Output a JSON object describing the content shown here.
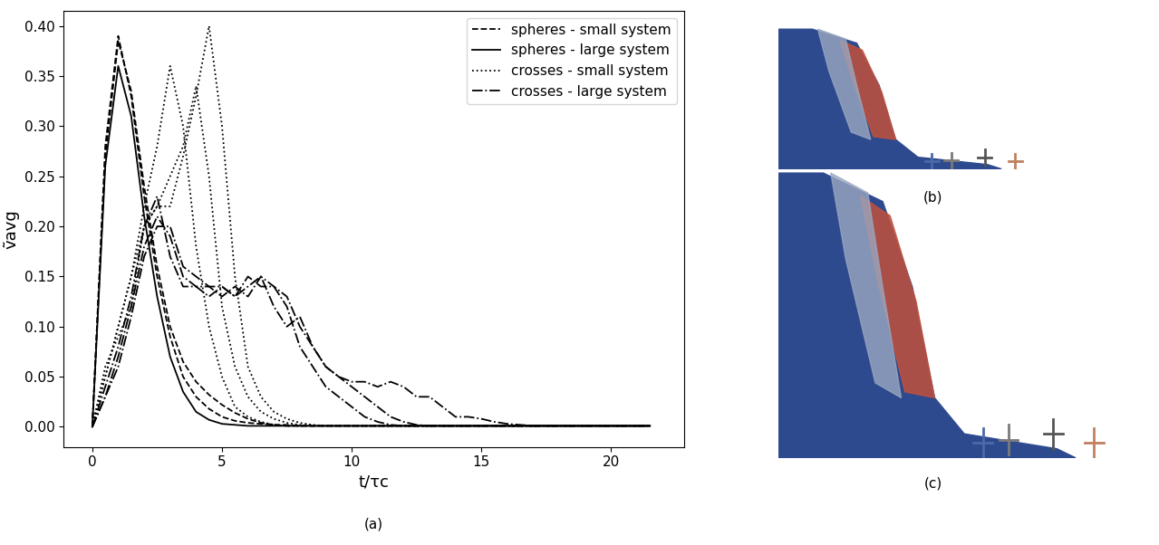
{
  "chart_data": {
    "type": "line",
    "caption": "(a)",
    "x_label": "t/τc",
    "y_label": "ṽavg",
    "xlim": [
      -1.1,
      22.8
    ],
    "ylim": [
      -0.02,
      0.415
    ],
    "xticks": [
      0,
      5,
      10,
      15,
      20
    ],
    "yticks": [
      {
        "value": 0.0,
        "label": "0.00"
      },
      {
        "value": 0.05,
        "label": "0.05"
      },
      {
        "value": 0.1,
        "label": "0.10"
      },
      {
        "value": 0.15,
        "label": "0.15"
      },
      {
        "value": 0.2,
        "label": "0.20"
      },
      {
        "value": 0.25,
        "label": "0.25"
      },
      {
        "value": 0.3,
        "label": "0.30"
      },
      {
        "value": 0.35,
        "label": "0.35"
      },
      {
        "value": 0.4,
        "label": "0.40"
      }
    ],
    "legend": "upper right",
    "grid": false,
    "x": [
      0,
      0.5,
      1,
      1.5,
      2,
      2.5,
      3,
      3.5,
      4,
      4.5,
      5,
      5.5,
      6,
      6.5,
      7,
      7.5,
      8,
      8.5,
      9,
      9.5,
      10,
      10.5,
      11,
      11.5,
      12,
      12.5,
      13,
      13.5,
      14,
      14.5,
      15,
      15.5,
      16,
      16.5,
      17,
      17.5,
      18,
      18.5,
      19,
      19.5,
      20,
      20.5,
      21,
      21.5
    ],
    "series": [
      {
        "name": "spheres - small system",
        "color": "#000000",
        "line_style": "dashed",
        "runs": [
          [
            0,
            0.28,
            0.39,
            0.33,
            0.23,
            0.15,
            0.09,
            0.05,
            0.03,
            0.018,
            0.01,
            0.006,
            0.004,
            0.003,
            0.002,
            0.002,
            0.001,
            0.001,
            0.001,
            0.001,
            0.001,
            0.001,
            0.001,
            0.001,
            0.001,
            0.001,
            0.001,
            0.001,
            0.001,
            0.001,
            0.001,
            0.001,
            0.001,
            0.001,
            0.001,
            0.001,
            0.001,
            0.001,
            0.001,
            0.001,
            0.001,
            0.001,
            0.001,
            0.001
          ],
          [
            0,
            0.27,
            0.385,
            0.335,
            0.24,
            0.16,
            0.1,
            0.065,
            0.045,
            0.032,
            0.022,
            0.014,
            0.008,
            0.004,
            0.002,
            0.001,
            0.001,
            0.001,
            0.001,
            0.001,
            0.001,
            0.001,
            0.001,
            0.001,
            0.001,
            0.001,
            0.001,
            0.001,
            0.001,
            0.001,
            0.001,
            0.001,
            0.001,
            0.001,
            0.001,
            0.001,
            0.001,
            0.001,
            0.001,
            0.001,
            0.001,
            0.001,
            0.001,
            0.001
          ]
        ]
      },
      {
        "name": "spheres - large system",
        "color": "#000000",
        "line_style": "solid",
        "runs": [
          [
            0,
            0.26,
            0.36,
            0.31,
            0.21,
            0.13,
            0.07,
            0.035,
            0.015,
            0.007,
            0.003,
            0.002,
            0.001,
            0.001,
            0.001,
            0.001,
            0.001,
            0.001,
            0.001,
            0.001,
            0.001,
            0.001,
            0.001,
            0.001,
            0.001,
            0.001,
            0.001,
            0.001,
            0.001,
            0.001,
            0.001,
            0.001,
            0.001,
            0.001,
            0.001,
            0.001,
            0.001,
            0.001,
            0.001,
            0.001,
            0.001,
            0.001,
            0.001,
            0.001
          ]
        ]
      },
      {
        "name": "crosses - small system",
        "color": "#000000",
        "line_style": "dotted",
        "runs": [
          [
            0,
            0.05,
            0.1,
            0.15,
            0.22,
            0.28,
            0.36,
            0.3,
            0.18,
            0.1,
            0.05,
            0.02,
            0.01,
            0.005,
            0.002,
            0.001,
            0.001,
            0.001,
            0.001,
            0.001,
            0.001,
            0.001,
            0.001,
            0.001,
            0.001,
            0.001,
            0.001,
            0.001,
            0.001,
            0.001,
            0.001,
            0.001,
            0.001,
            0.001,
            0.001,
            0.001,
            0.001,
            0.001,
            0.001,
            0.001,
            0.001,
            0.001,
            0.001,
            0.001
          ],
          [
            0,
            0.06,
            0.09,
            0.12,
            0.2,
            0.22,
            0.25,
            0.28,
            0.34,
            0.25,
            0.12,
            0.06,
            0.03,
            0.015,
            0.008,
            0.004,
            0.002,
            0.001,
            0.001,
            0.001,
            0.001,
            0.001,
            0.001,
            0.001,
            0.001,
            0.001,
            0.001,
            0.001,
            0.001,
            0.001,
            0.001,
            0.001,
            0.001,
            0.001,
            0.001,
            0.001,
            0.001,
            0.001,
            0.001,
            0.001,
            0.001,
            0.001,
            0.001,
            0.001
          ],
          [
            0,
            0.05,
            0.1,
            0.15,
            0.2,
            0.22,
            0.22,
            0.27,
            0.33,
            0.4,
            0.3,
            0.15,
            0.06,
            0.03,
            0.015,
            0.008,
            0.004,
            0.002,
            0.001,
            0.001,
            0.001,
            0.001,
            0.001,
            0.001,
            0.001,
            0.001,
            0.001,
            0.001,
            0.001,
            0.001,
            0.001,
            0.001,
            0.001,
            0.001,
            0.001,
            0.001,
            0.001,
            0.001,
            0.001,
            0.001,
            0.001,
            0.001,
            0.001,
            0.001
          ]
        ]
      },
      {
        "name": "crosses - large system",
        "color": "#000000",
        "line_style": "dashdot",
        "runs": [
          [
            0,
            0.04,
            0.08,
            0.13,
            0.2,
            0.23,
            0.17,
            0.14,
            0.14,
            0.13,
            0.14,
            0.13,
            0.14,
            0.15,
            0.12,
            0.1,
            0.11,
            0.08,
            0.06,
            0.05,
            0.04,
            0.03,
            0.02,
            0.01,
            0.005,
            0.002,
            0.001,
            0.001,
            0.001,
            0.001,
            0.001,
            0.001,
            0.001,
            0.001,
            0.001,
            0.001,
            0.001,
            0.001,
            0.001,
            0.001,
            0.001,
            0.001,
            0.001,
            0.001
          ],
          [
            0,
            0.03,
            0.07,
            0.12,
            0.18,
            0.21,
            0.19,
            0.15,
            0.14,
            0.14,
            0.14,
            0.13,
            0.15,
            0.14,
            0.14,
            0.12,
            0.08,
            0.06,
            0.04,
            0.03,
            0.02,
            0.01,
            0.005,
            0.002,
            0.001,
            0.001,
            0.001,
            0.001,
            0.001,
            0.001,
            0.001,
            0.001,
            0.001,
            0.001,
            0.001,
            0.001,
            0.001,
            0.001,
            0.001,
            0.001,
            0.001,
            0.001,
            0.001,
            0.001
          ],
          [
            0,
            0.03,
            0.06,
            0.11,
            0.17,
            0.2,
            0.2,
            0.16,
            0.15,
            0.14,
            0.13,
            0.14,
            0.13,
            0.15,
            0.14,
            0.13,
            0.1,
            0.08,
            0.06,
            0.05,
            0.045,
            0.045,
            0.04,
            0.045,
            0.04,
            0.03,
            0.03,
            0.02,
            0.01,
            0.01,
            0.008,
            0.005,
            0.003,
            0.002,
            0.001,
            0.001,
            0.001,
            0.001,
            0.001,
            0.001,
            0.001,
            0.001,
            0.001,
            0.001
          ]
        ]
      }
    ]
  },
  "images": [
    {
      "label": "(b)"
    },
    {
      "label": "(c)"
    }
  ]
}
